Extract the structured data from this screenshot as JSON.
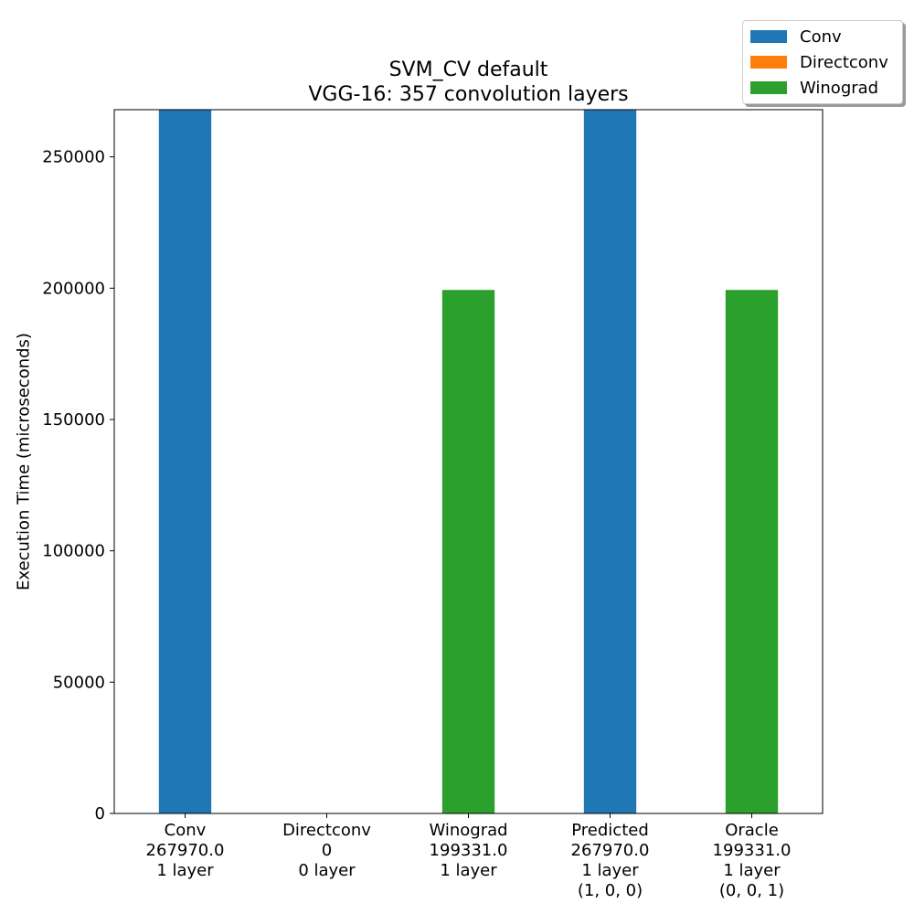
{
  "chart_data": {
    "type": "bar",
    "title": "SVM_CV default",
    "subtitle": "VGG-16: 357 convolution layers",
    "ylabel": "Execution Time (microseconds)",
    "xlabel": "",
    "ylim": [
      0,
      267970
    ],
    "yticks": [
      "0",
      "50000",
      "100000",
      "150000",
      "200000",
      "250000"
    ],
    "yticks_values": [
      0,
      50000,
      100000,
      150000,
      200000,
      250000
    ],
    "categories": [
      [
        "Conv",
        "267970.0",
        "1 layer"
      ],
      [
        "Directconv",
        "0",
        "0 layer"
      ],
      [
        "Winograd",
        "199331.0",
        "1 layer"
      ],
      [
        "Predicted",
        "267970.0",
        "1 layer",
        "(1, 0, 0)"
      ],
      [
        "Oracle",
        "199331.0",
        "1 layer",
        "(0, 0, 1)"
      ]
    ],
    "bars": [
      {
        "series": "Conv",
        "value": 267970
      },
      {
        "series": "Directconv",
        "value": 0
      },
      {
        "series": "Winograd",
        "value": 199331
      },
      {
        "series": "Conv",
        "value": 267970
      },
      {
        "series": "Winograd",
        "value": 199331
      }
    ],
    "legend": {
      "placement": "top-right",
      "entries": [
        {
          "name": "Conv",
          "color": "#1f77b4"
        },
        {
          "name": "Directconv",
          "color": "#ff7f0e"
        },
        {
          "name": "Winograd",
          "color": "#2ca02c"
        }
      ]
    },
    "grid": false
  }
}
